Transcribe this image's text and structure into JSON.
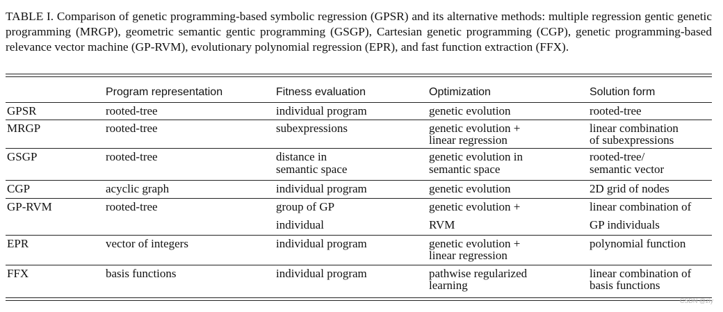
{
  "caption": "TABLE I. Comparison of genetic programming-based symbolic regression (GPSR) and its alternative methods: multiple regression gentic genetic programming (MRGP), geometric semantic gentic programming (GSGP), Cartesian genetic programming (CGP), genetic programming-based relevance vector machine (GP-RVM), evolutionary polynomial regression (EPR), and fast function extraction (FFX).",
  "table": {
    "header": [
      "Program representation",
      "Fitness evaluation",
      "Optimization",
      "Solution form"
    ],
    "rows": [
      [
        [
          "GPSR"
        ],
        [
          "rooted-tree"
        ],
        [
          "individual program"
        ],
        [
          "genetic evolution"
        ],
        [
          "rooted-tree"
        ]
      ],
      [
        [
          "MRGP"
        ],
        [
          "rooted-tree"
        ],
        [
          "subexpressions"
        ],
        [
          "genetic evolution +",
          "linear regression"
        ],
        [
          "linear combination",
          "of subexpressions"
        ]
      ],
      [
        [
          "GSGP"
        ],
        [
          "rooted-tree"
        ],
        [
          "distance in",
          "semantic space"
        ],
        [
          "genetic evolution in",
          "semantic space"
        ],
        [
          "rooted-tree/",
          "semantic vector"
        ]
      ],
      [
        [
          "CGP"
        ],
        [
          "acyclic graph"
        ],
        [
          "individual program"
        ],
        [
          "genetic evolution"
        ],
        [
          "2D grid of nodes"
        ]
      ],
      [
        [
          "GP-RVM"
        ],
        [
          "rooted-tree"
        ],
        [
          "group of GP",
          "individual"
        ],
        [
          "genetic evolution +",
          "RVM"
        ],
        [
          "linear combination of",
          "GP individuals"
        ]
      ],
      [
        [
          "EPR"
        ],
        [
          "vector of integers"
        ],
        [
          "individual program"
        ],
        [
          "genetic evolution +",
          "linear regression"
        ],
        [
          "polynomial function"
        ]
      ],
      [
        [
          "FFX"
        ],
        [
          "basis functions"
        ],
        [
          "individual program"
        ],
        [
          "pathwise regularized",
          "learning"
        ],
        [
          "linear combination of",
          "basis functions"
        ]
      ]
    ]
  },
  "watermark": "CSDN @ziy"
}
